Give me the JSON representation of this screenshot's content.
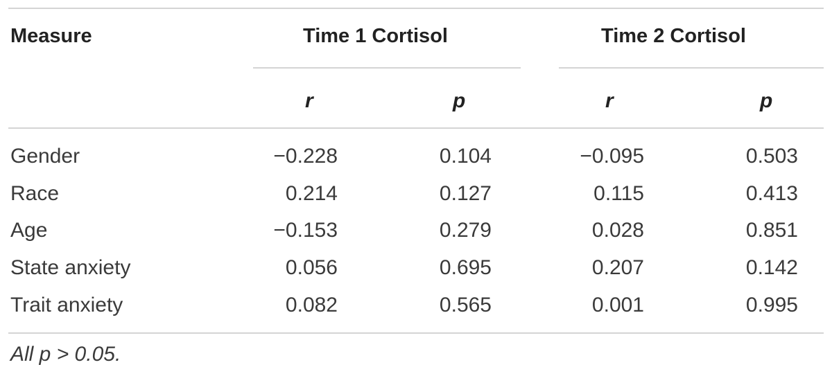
{
  "header": {
    "measure": "Measure",
    "time1": "Time 1 Cortisol",
    "time2": "Time 2 Cortisol"
  },
  "subheader": {
    "t1_r": "r",
    "t1_p": "p",
    "t2_r": "r",
    "t2_p": "p"
  },
  "rows": [
    {
      "measure": "Gender",
      "t1_r": "−0.228",
      "t1_p": "0.104",
      "t2_r": "−0.095",
      "t2_p": "0.503"
    },
    {
      "measure": "Race",
      "t1_r": "0.214",
      "t1_p": "0.127",
      "t2_r": "0.115",
      "t2_p": "0.413"
    },
    {
      "measure": "Age",
      "t1_r": "−0.153",
      "t1_p": "0.279",
      "t2_r": "0.028",
      "t2_p": "0.851"
    },
    {
      "measure": "State anxiety",
      "t1_r": "0.056",
      "t1_p": "0.695",
      "t2_r": "0.207",
      "t2_p": "0.142"
    },
    {
      "measure": "Trait anxiety",
      "t1_r": "0.082",
      "t1_p": "0.565",
      "t2_r": "0.001",
      "t2_p": "0.995"
    }
  ],
  "footnote": "All p > 0.05."
}
